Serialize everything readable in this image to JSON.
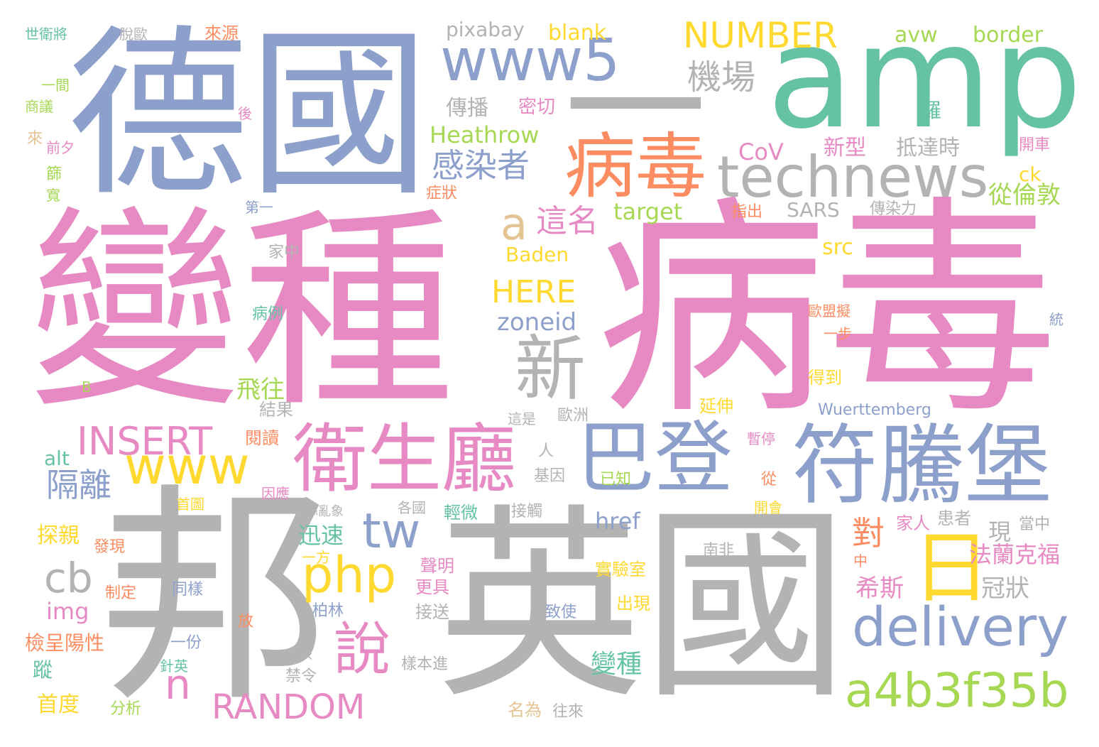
{
  "palette": {
    "pink": "#e78ac3",
    "gray": "#b3b3b3",
    "blue": "#8da0cb",
    "green": "#66c2a5",
    "orange": "#fc8d62",
    "yellow": "#ffd92f",
    "lime": "#a6d854",
    "tan": "#e5c494"
  },
  "words": [
    "變種",
    "病毒",
    "邦",
    "英國",
    "德國",
    "amp",
    "一",
    "病毒",
    "巴登",
    "符騰堡",
    "衛生廳",
    "www5",
    "technews",
    "新",
    "www",
    "日",
    "delivery",
    "a4b3f35b",
    "php",
    "說",
    "tw",
    "INSERT",
    "RANDOM",
    "NUMBER",
    "cb",
    "n",
    "HERE",
    "a",
    "機場",
    "感染者",
    "這名",
    "隔離",
    "從倫敦",
    "對",
    "法蘭克福",
    "希斯",
    "冠狀",
    "現",
    "變種",
    "飛往",
    "迅速",
    "href",
    "zoneid",
    "img",
    "Heathrow",
    "target",
    "SARS",
    "傳染力",
    "CoV",
    "新型",
    "抵達時",
    "blank",
    "pixabay",
    "avw",
    "border",
    "傳播",
    "密切",
    "src",
    "Baden",
    "Wuerttemberg",
    "ck",
    "羅",
    "開車",
    "alt",
    "探親",
    "首度",
    "檢呈陽性",
    "蹤",
    "結果",
    "閱讀",
    "人",
    "基因",
    "已知",
    "接觸",
    "實驗室",
    "出現",
    "致使",
    "接送",
    "樣本進",
    "禁令",
    "分析",
    "名為",
    "往來",
    "一份",
    "針英",
    "放",
    "該",
    "柏林",
    "一方",
    "聲明",
    "更具",
    "發現",
    "制定",
    "同樣",
    "首圖",
    "因應",
    "添亂象",
    "各國",
    "輕微",
    "家人",
    "患者",
    "當中",
    "南非",
    "中",
    "暫停",
    "從",
    "開會",
    "延伸",
    "得到",
    "一步",
    "歐盟擬",
    "統",
    "病例",
    "家中",
    "指出",
    "症狀",
    "第一",
    "前夕",
    "來",
    "篩",
    "寬",
    "後",
    "商議",
    "一間",
    "世衛將",
    "脫歐",
    "來源",
    "B",
    "這是",
    "歐洲"
  ]
}
